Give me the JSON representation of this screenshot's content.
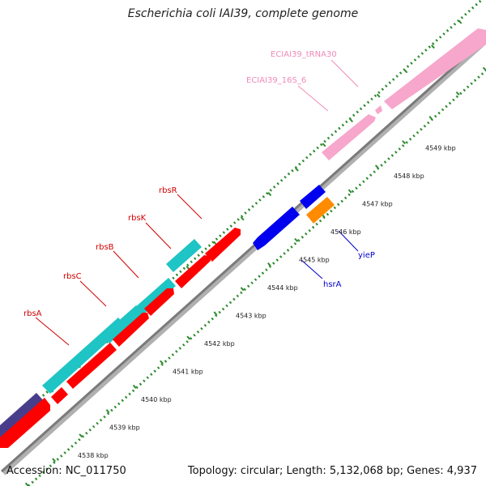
{
  "header": {
    "title": "Escherichia coli IAI39, complete genome"
  },
  "footer": {
    "accession": "Accession: NC_011750",
    "summary": "Topology: circular; Length: 5,132,068 bp; Genes: 4,937"
  },
  "colors": {
    "cyan": "#1fc4c4",
    "red": "#ff0000",
    "blue": "#0000ee",
    "orange": "#ff8c00",
    "pink": "#f7a6cc",
    "navy": "#483d8b",
    "ruler": "#2e8b2e",
    "backbone": "#8a8a8a"
  },
  "ruler_labels": [
    "4538 kbp",
    "4539 kbp",
    "4540 kbp",
    "4541 kbp",
    "4542 kbp",
    "4543 kbp",
    "4544 kbp",
    "4545 kbp",
    "4546 kbp",
    "4547 kbp",
    "4548 kbp",
    "4549 kbp"
  ],
  "gene_labels": {
    "rbsA": "rbsA",
    "rbsC": "rbsC",
    "rbsB": "rbsB",
    "rbsK": "rbsK",
    "rbsR": "rbsR",
    "hsrA": "hsrA",
    "yieP": "yieP",
    "rrs": "ECIAI39_16S_6",
    "trna": "ECIAI39_tRNA30"
  }
}
